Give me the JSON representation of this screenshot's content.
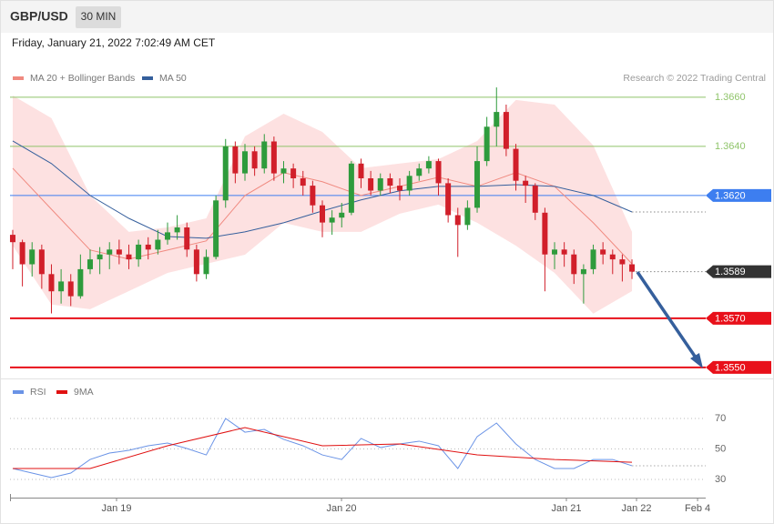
{
  "header": {
    "symbol": "GBP/USD",
    "timeframe": "30 MIN",
    "timestamp": "Friday, January 21, 2022 7:02:49 AM CET"
  },
  "chart_data": [
    {
      "type": "candlestick",
      "annotation": "Research © 2022 Trading Central",
      "up_color": "#2e9b3c",
      "down_color": "#d11f2a",
      "xlim": [
        -0.28,
        71.62
      ],
      "ylim": [
        1.35459,
        1.36644
      ],
      "x": [
        0,
        1,
        2,
        3,
        4,
        5,
        6,
        7,
        8,
        9,
        10,
        11,
        12,
        13,
        14,
        15,
        16,
        17,
        18,
        19,
        20,
        21,
        22,
        23,
        24,
        25,
        26,
        27,
        28,
        29,
        30,
        31,
        32,
        33,
        34,
        35,
        36,
        37,
        38,
        39,
        40,
        41,
        42,
        43,
        44,
        45,
        46,
        47,
        48,
        49,
        50,
        51,
        52,
        53,
        54,
        55,
        56,
        57,
        58,
        59,
        60,
        61,
        62,
        63,
        64
      ],
      "candles": [
        [
          1.3604,
          1.3606,
          1.359,
          1.3601
        ],
        [
          1.3601,
          1.3602,
          1.3583,
          1.3592
        ],
        [
          1.3592,
          1.3601,
          1.3587,
          1.3598
        ],
        [
          1.3598,
          1.36,
          1.3582,
          1.3588
        ],
        [
          1.3588,
          1.3592,
          1.3572,
          1.3581
        ],
        [
          1.3581,
          1.359,
          1.3576,
          1.3585
        ],
        [
          1.3585,
          1.3588,
          1.3575,
          1.3579
        ],
        [
          1.3579,
          1.3596,
          1.3578,
          1.359
        ],
        [
          1.359,
          1.3598,
          1.3588,
          1.3594
        ],
        [
          1.3594,
          1.3599,
          1.3588,
          1.3596
        ],
        [
          1.3596,
          1.3601,
          1.359,
          1.3598
        ],
        [
          1.3598,
          1.3602,
          1.3592,
          1.3596
        ],
        [
          1.3596,
          1.36,
          1.359,
          1.3594
        ],
        [
          1.3594,
          1.3602,
          1.3591,
          1.36
        ],
        [
          1.36,
          1.3603,
          1.3594,
          1.3598
        ],
        [
          1.3598,
          1.3606,
          1.3596,
          1.3602
        ],
        [
          1.3602,
          1.3609,
          1.36,
          1.3605
        ],
        [
          1.3605,
          1.3612,
          1.3602,
          1.3607
        ],
        [
          1.3607,
          1.3609,
          1.3595,
          1.3598
        ],
        [
          1.3598,
          1.36,
          1.3585,
          1.3588
        ],
        [
          1.3588,
          1.3598,
          1.3586,
          1.3595
        ],
        [
          1.3595,
          1.362,
          1.3594,
          1.3618
        ],
        [
          1.3618,
          1.3643,
          1.3615,
          1.364
        ],
        [
          1.364,
          1.3642,
          1.3625,
          1.3629
        ],
        [
          1.3629,
          1.3641,
          1.3626,
          1.3638
        ],
        [
          1.3638,
          1.364,
          1.3628,
          1.3631
        ],
        [
          1.3631,
          1.3645,
          1.3629,
          1.3642
        ],
        [
          1.3642,
          1.3644,
          1.3626,
          1.3629
        ],
        [
          1.3629,
          1.3634,
          1.3625,
          1.3631
        ],
        [
          1.3631,
          1.3633,
          1.3623,
          1.3627
        ],
        [
          1.3627,
          1.363,
          1.362,
          1.3624
        ],
        [
          1.3624,
          1.3626,
          1.3613,
          1.3616
        ],
        [
          1.3616,
          1.3618,
          1.3603,
          1.3609
        ],
        [
          1.3609,
          1.3614,
          1.3604,
          1.3611
        ],
        [
          1.3611,
          1.3617,
          1.3607,
          1.3613
        ],
        [
          1.3613,
          1.3634,
          1.3612,
          1.3633
        ],
        [
          1.3633,
          1.3635,
          1.3623,
          1.3627
        ],
        [
          1.3627,
          1.363,
          1.362,
          1.3622
        ],
        [
          1.3622,
          1.3629,
          1.362,
          1.3627
        ],
        [
          1.3627,
          1.3629,
          1.3621,
          1.3624
        ],
        [
          1.3624,
          1.3627,
          1.3618,
          1.3622
        ],
        [
          1.3622,
          1.363,
          1.362,
          1.3628
        ],
        [
          1.3628,
          1.3633,
          1.3626,
          1.3631
        ],
        [
          1.3631,
          1.3636,
          1.3629,
          1.3634
        ],
        [
          1.3634,
          1.3635,
          1.362,
          1.3625
        ],
        [
          1.3625,
          1.3627,
          1.3609,
          1.3612
        ],
        [
          1.3612,
          1.3615,
          1.3595,
          1.3608
        ],
        [
          1.3608,
          1.3618,
          1.3606,
          1.3615
        ],
        [
          1.3615,
          1.364,
          1.3613,
          1.3634
        ],
        [
          1.3634,
          1.3652,
          1.3632,
          1.3648
        ],
        [
          1.3648,
          1.3664,
          1.364,
          1.3654
        ],
        [
          1.3654,
          1.3657,
          1.3636,
          1.3639
        ],
        [
          1.3639,
          1.3641,
          1.3622,
          1.3626
        ],
        [
          1.3626,
          1.3628,
          1.3617,
          1.3624
        ],
        [
          1.3624,
          1.3625,
          1.361,
          1.3613
        ],
        [
          1.3613,
          1.3615,
          1.3581,
          1.3596
        ],
        [
          1.3596,
          1.3601,
          1.359,
          1.3598
        ],
        [
          1.3598,
          1.3601,
          1.3591,
          1.3596
        ],
        [
          1.3596,
          1.3598,
          1.3584,
          1.3588
        ],
        [
          1.3588,
          1.3592,
          1.3576,
          1.359
        ],
        [
          1.359,
          1.36,
          1.3588,
          1.3598
        ],
        [
          1.3598,
          1.3601,
          1.3592,
          1.3596
        ],
        [
          1.3596,
          1.3598,
          1.3588,
          1.3594
        ],
        [
          1.3594,
          1.3596,
          1.3585,
          1.3592
        ],
        [
          1.3592,
          1.3594,
          1.3586,
          1.3589
        ]
      ],
      "overlays": [
        {
          "name": "MA 20 + Bollinger Bands",
          "color": "#f08a80",
          "band_color": "#fde1e1",
          "x": [
            0,
            4,
            8,
            12,
            16,
            20,
            24,
            28,
            32,
            36,
            40,
            44,
            48,
            52,
            56,
            60,
            64
          ],
          "values": [
            1.36311,
            1.36144,
            1.35978,
            1.35941,
            1.35978,
            1.36015,
            1.362,
            1.36293,
            1.36256,
            1.362,
            1.36237,
            1.36274,
            1.36237,
            1.36293,
            1.36237,
            1.36089,
            1.35922
          ],
          "upper": [
            1.36607,
            1.36515,
            1.362,
            1.36052,
            1.3607,
            1.36107,
            1.36441,
            1.36533,
            1.36459,
            1.36311,
            1.3633,
            1.36348,
            1.36422,
            1.36589,
            1.3657,
            1.36404,
            1.36052
          ],
          "lower": [
            1.35996,
            1.35756,
            1.35737,
            1.35811,
            1.35885,
            1.35922,
            1.35959,
            1.36089,
            1.36052,
            1.36052,
            1.36126,
            1.36163,
            1.36089,
            1.35996,
            1.35885,
            1.35719,
            1.35811
          ]
        },
        {
          "name": "MA 50",
          "color": "#355f9c",
          "x": [
            0,
            4,
            8,
            12,
            16,
            20,
            24,
            28,
            32,
            36,
            40,
            44,
            48,
            52,
            56,
            60,
            64
          ],
          "values": [
            1.36422,
            1.3633,
            1.362,
            1.36107,
            1.36033,
            1.36026,
            1.36052,
            1.36089,
            1.36137,
            1.36182,
            1.36219,
            1.36237,
            1.36237,
            1.36244,
            1.36237,
            1.362,
            1.36133
          ]
        }
      ],
      "levels": [
        {
          "value": 1.366,
          "label": "1.3660",
          "color": "#8fc46a",
          "badge": false,
          "dashed": false
        },
        {
          "value": 1.364,
          "label": "1.3640",
          "color": "#8fc46a",
          "badge": false,
          "dashed": false
        },
        {
          "value": 1.362,
          "label": "1.3620",
          "color": "#3d7ef0",
          "badge": true,
          "dashed": false
        },
        {
          "value": 1.3589,
          "label": "1.3589",
          "color": "#333333",
          "badge": true,
          "dashed": true
        },
        {
          "value": 1.357,
          "label": "1.3570",
          "color": "#e8101a",
          "badge": true,
          "dashed": false
        },
        {
          "value": 1.355,
          "label": "1.3550",
          "color": "#e8101a",
          "badge": true,
          "dashed": false
        }
      ]
    },
    {
      "type": "line",
      "xlim": [
        -0.28,
        71.62
      ],
      "ylim": [
        19.3,
        81.9
      ],
      "xticks": [
        {
          "value": 10.73,
          "label": "Jan 19"
        },
        {
          "value": 33.98,
          "label": "Jan 20"
        },
        {
          "value": 57.22,
          "label": "Jan 21"
        },
        {
          "value": 64.47,
          "label": "Jan 22"
        },
        {
          "value": 70.78,
          "label": "Feb 4"
        }
      ],
      "yticks": [
        30,
        50,
        70
      ],
      "series": [
        {
          "name": "RSI",
          "color": "#6a93e6",
          "x": [
            0,
            2,
            4,
            6,
            8,
            10,
            12,
            14,
            16,
            18,
            20,
            22,
            24,
            26,
            28,
            30,
            32,
            34,
            36,
            38,
            40,
            42,
            44,
            46,
            48,
            50,
            52,
            54,
            56,
            58,
            60,
            62,
            64
          ],
          "values": [
            37.2,
            34.2,
            31.2,
            34.2,
            43.1,
            47.3,
            49.1,
            52.1,
            53.9,
            50.3,
            46.1,
            70,
            61.0,
            62.8,
            56.3,
            52.1,
            46.1,
            43.1,
            56.9,
            50.9,
            53.3,
            55.1,
            52.1,
            37.2,
            58.1,
            67.0,
            53.3,
            43.1,
            37.2,
            37.2,
            43.1,
            43.1,
            39.0
          ]
        },
        {
          "name": "9MA",
          "color": "#e01010",
          "x": [
            0,
            8,
            16,
            24,
            32,
            40,
            48,
            56,
            64
          ],
          "values": [
            37.2,
            37.2,
            52.1,
            64.0,
            52.1,
            53.3,
            46.1,
            43.1,
            41.3
          ]
        }
      ]
    }
  ]
}
